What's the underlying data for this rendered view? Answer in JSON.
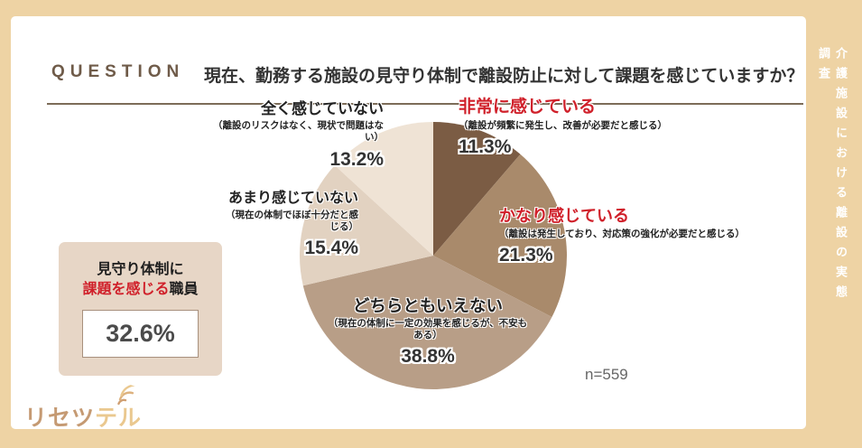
{
  "page": {
    "background_color": "#eed3a4",
    "card_color": "#ffffff",
    "accent_red": "#d0202a"
  },
  "header": {
    "question_label": "QUESTION",
    "title": "現在、勤務する施設の見守り体制で離設防止に対して課題を感じていますか？"
  },
  "side_note": "介護施設における離設の実態調査",
  "stat_box": {
    "line1": "見守り体制に",
    "line2_red": "課題を感じる",
    "line2_black": "職員",
    "value": "32.6%"
  },
  "sample_size_label": "n=559",
  "logo": {
    "text_primary": "リセツ",
    "text_secondary": "テル",
    "icon": "wifi-signal-icon"
  },
  "chart_data": {
    "type": "pie",
    "title": "現在、勤務する施設の見守り体制で離設防止に対して課題を感じていますか？",
    "sample_size": 559,
    "start_angle_deg": 0,
    "direction": "clockwise",
    "legend_position": "around-pie",
    "segments": [
      {
        "label": "非常に感じている",
        "description": "（離設が頻繁に発生し、改善が必要だと感じる）",
        "value_pct": 11.3,
        "value_label": "11.3%",
        "color": "#7b5c44",
        "label_color": "#d0202a"
      },
      {
        "label": "かなり感じている",
        "description": "（離設は発生しており、対応策の強化が必要だと感じる）",
        "value_pct": 21.3,
        "value_label": "21.3%",
        "color": "#a98a6b",
        "label_color": "#d0202a"
      },
      {
        "label": "どちらともいえない",
        "description": "（現在の体制に一定の効果を感じるが、不安もある）",
        "value_pct": 38.8,
        "value_label": "38.8%",
        "color": "#b89e87",
        "label_color": "#333333"
      },
      {
        "label": "あまり感じていない",
        "description": "（現在の体制でほぼ十分だと感じる）",
        "value_pct": 15.4,
        "value_label": "15.4%",
        "color": "#e2d2c1",
        "label_color": "#333333"
      },
      {
        "label": "全く感じていない",
        "description": "（離設のリスクはなく、現状で問題はない）",
        "value_pct": 13.2,
        "value_label": "13.2%",
        "color": "#efe3d5",
        "label_color": "#333333"
      }
    ]
  }
}
